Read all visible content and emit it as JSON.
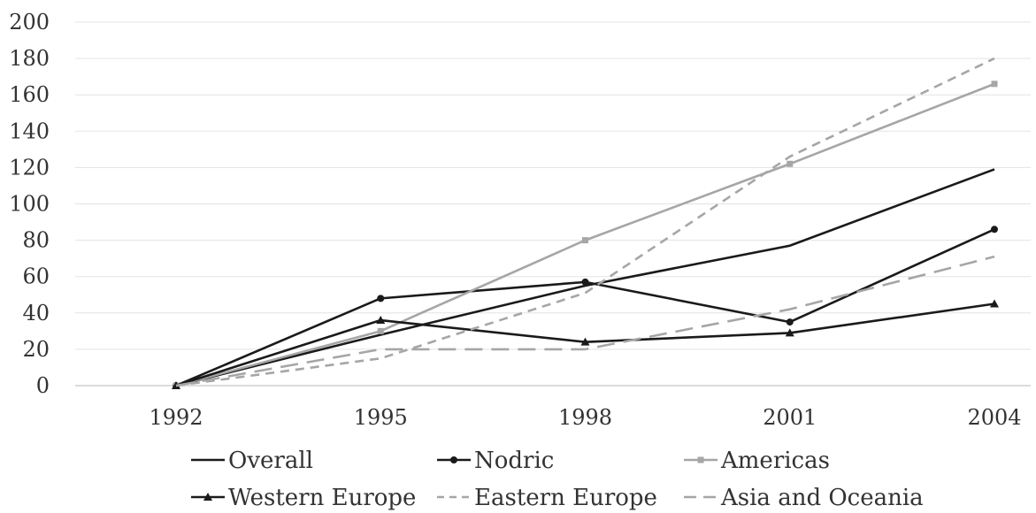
{
  "chart_data": {
    "type": "line",
    "categories": [
      "1992",
      "1995",
      "1998",
      "2001",
      "2004"
    ],
    "ylim": [
      0,
      200
    ],
    "yticks": [
      "0",
      "20",
      "40",
      "60",
      "80",
      "100",
      "120",
      "140",
      "160",
      "180",
      "200"
    ],
    "grid": true,
    "legend_position": "bottom",
    "series": [
      {
        "name": "Overall",
        "values": [
          0,
          28,
          55,
          77,
          119
        ],
        "color": "#1a1a1a",
        "dash": "solid",
        "marker": "none"
      },
      {
        "name": "Nodric",
        "values": [
          0,
          48,
          57,
          35,
          86
        ],
        "color": "#1a1a1a",
        "dash": "solid",
        "marker": "dot"
      },
      {
        "name": "Americas",
        "values": [
          0,
          30,
          80,
          122,
          166
        ],
        "color": "#a6a6a6",
        "dash": "solid",
        "marker": "square"
      },
      {
        "name": "Western Europe",
        "values": [
          0,
          36,
          24,
          29,
          45
        ],
        "color": "#1a1a1a",
        "dash": "solid",
        "marker": "triangle"
      },
      {
        "name": "Eastern Europe",
        "values": [
          0,
          15,
          51,
          126,
          180
        ],
        "color": "#a6a6a6",
        "dash": "short-dash",
        "marker": "none"
      },
      {
        "name": "Asia and Oceania",
        "values": [
          0,
          20,
          20,
          42,
          71
        ],
        "color": "#a6a6a6",
        "dash": "long-dash",
        "marker": "none"
      }
    ]
  }
}
